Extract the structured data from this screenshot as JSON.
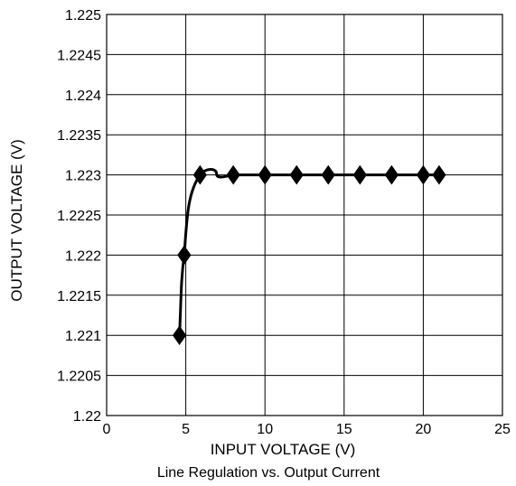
{
  "chart_data": {
    "type": "line",
    "title": "Line Regulation vs. Output Current",
    "xlabel": "INPUT VOLTAGE (V)",
    "ylabel": "OUTPUT VOLTAGE (V)",
    "xlim": [
      0,
      25
    ],
    "ylim": [
      1.22,
      1.225
    ],
    "x_ticks": [
      "0",
      "5",
      "10",
      "15",
      "20",
      "25"
    ],
    "y_ticks": [
      "1.22",
      "1.2205",
      "1.221",
      "1.2215",
      "1.222",
      "1.2225",
      "1.223",
      "1.2235",
      "1.224",
      "1.2245",
      "1.225"
    ],
    "grid": true,
    "legend": "none",
    "series": [
      {
        "marker": "diamond",
        "color": "#000000",
        "x": [
          4.6,
          4.9,
          5.9,
          8,
          10,
          12,
          14,
          16,
          18,
          20,
          21
        ],
        "y": [
          1.221,
          1.222,
          1.223,
          1.223,
          1.223,
          1.223,
          1.223,
          1.223,
          1.223,
          1.223,
          1.223
        ]
      }
    ]
  }
}
